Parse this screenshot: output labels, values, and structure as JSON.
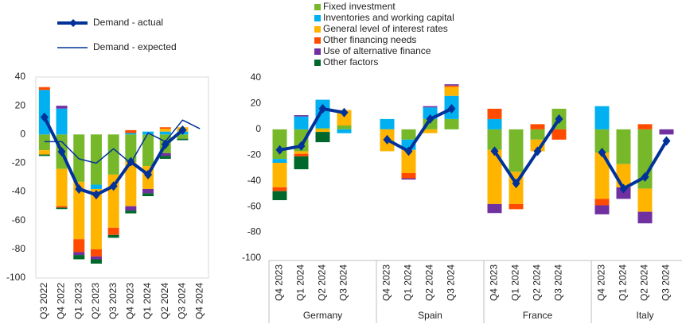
{
  "chart_data": [
    {
      "type": "bar",
      "categories": [
        "Q3 2022",
        "Q4 2022",
        "Q1 2023",
        "Q2 2023",
        "Q3 2023",
        "Q4 2023",
        "Q1 2024",
        "Q2 2024",
        "Q3 2024",
        "Q4 2024"
      ],
      "ylim": [
        -100,
        40
      ],
      "yticks": [
        -100,
        -80,
        -60,
        -40,
        -20,
        0,
        20,
        40
      ],
      "series": [
        {
          "name": "Fixed investment",
          "color": "#76b82a",
          "values": [
            -11,
            -24,
            -33,
            -35,
            -28,
            -19,
            -22,
            -13,
            -3,
            null
          ]
        },
        {
          "name": "Inventories and working capital",
          "color": "#00b0f0",
          "values": [
            31,
            18,
            0,
            -3,
            0,
            1,
            2,
            2,
            2,
            null
          ]
        },
        {
          "name": "General level of interest rates",
          "color": "#ffb400",
          "values": [
            -3,
            -26,
            -40,
            -42,
            -37,
            -31,
            -16,
            2,
            3,
            null
          ]
        },
        {
          "name": "Other financing needs",
          "color": "#ff4b00",
          "values": [
            2,
            -1,
            -9,
            -5,
            -5,
            2,
            0,
            1,
            0,
            null
          ]
        },
        {
          "name": "Use of alternative finance",
          "color": "#7030a0",
          "values": [
            0,
            2,
            -2,
            -2,
            0,
            -3,
            -3,
            -2,
            0,
            null
          ]
        },
        {
          "name": "Other factors",
          "color": "#00682b",
          "values": [
            -1,
            -1,
            -3,
            -3,
            -2,
            -2,
            -2,
            -2,
            -1,
            null
          ]
        },
        {
          "name": "Demand - actual",
          "color": "#003299",
          "type": "line",
          "width": 4,
          "values": [
            12,
            -12,
            -38,
            -42,
            -36,
            -19,
            -28,
            -7,
            3,
            null
          ]
        },
        {
          "name": "Demand - expected",
          "color": "#003299",
          "type": "line",
          "width": 1.5,
          "values": [
            -5,
            -5,
            -17,
            -20,
            -10,
            -20,
            1,
            -5,
            10,
            4
          ]
        }
      ]
    },
    {
      "type": "bar",
      "groups": [
        "Germany",
        "Spain",
        "France",
        "Italy"
      ],
      "categories": [
        "Q4 2023",
        "Q1 2024",
        "Q2 2024",
        "Q3 2024"
      ],
      "ylim": [
        -100,
        40
      ],
      "yticks": [
        -100,
        -80,
        -60,
        -40,
        -20,
        0,
        20,
        40
      ],
      "series": [
        {
          "values": [
            [
              -23,
              -17,
              1,
              3
            ],
            [
              0,
              -8,
              8,
              8
            ],
            [
              -16,
              -33,
              -8,
              16
            ],
            [
              -18,
              -27,
              -46,
              0
            ]
          ]
        },
        {
          "values": [
            [
              -3,
              10,
              22,
              -3
            ],
            [
              8,
              -8,
              9,
              18
            ],
            [
              8,
              0,
              0,
              0
            ],
            [
              18,
              0,
              0,
              0
            ]
          ]
        },
        {
          "values": [
            [
              -19,
              -2,
              -2,
              12
            ],
            [
              -17,
              -18,
              -3,
              7
            ],
            [
              -42,
              -25,
              -9,
              0
            ],
            [
              -36,
              -18,
              -18,
              0
            ]
          ]
        },
        {
          "values": [
            [
              -3,
              -2,
              0,
              0
            ],
            [
              0,
              -4,
              0,
              1
            ],
            [
              8,
              -4,
              4,
              -8
            ],
            [
              -5,
              0,
              4,
              0
            ]
          ]
        },
        {
          "values": [
            [
              0,
              1,
              0,
              0
            ],
            [
              0,
              -1,
              1,
              1
            ],
            [
              -7,
              0,
              0,
              0
            ],
            [
              -7,
              -9,
              -9,
              -4
            ]
          ]
        },
        {
          "values": [
            [
              -7,
              -10,
              -8,
              0
            ],
            [
              0,
              0,
              0,
              0
            ],
            [
              0,
              0,
              0,
              0
            ],
            [
              0,
              0,
              0,
              0
            ]
          ]
        },
        {
          "type": "line",
          "values": [
            [
              -16,
              -13,
              16,
              13
            ],
            [
              -8,
              -17,
              8,
              16
            ],
            [
              -17,
              -42,
              -17,
              8
            ],
            [
              -18,
              -46,
              -37,
              -9
            ]
          ]
        }
      ]
    }
  ]
}
